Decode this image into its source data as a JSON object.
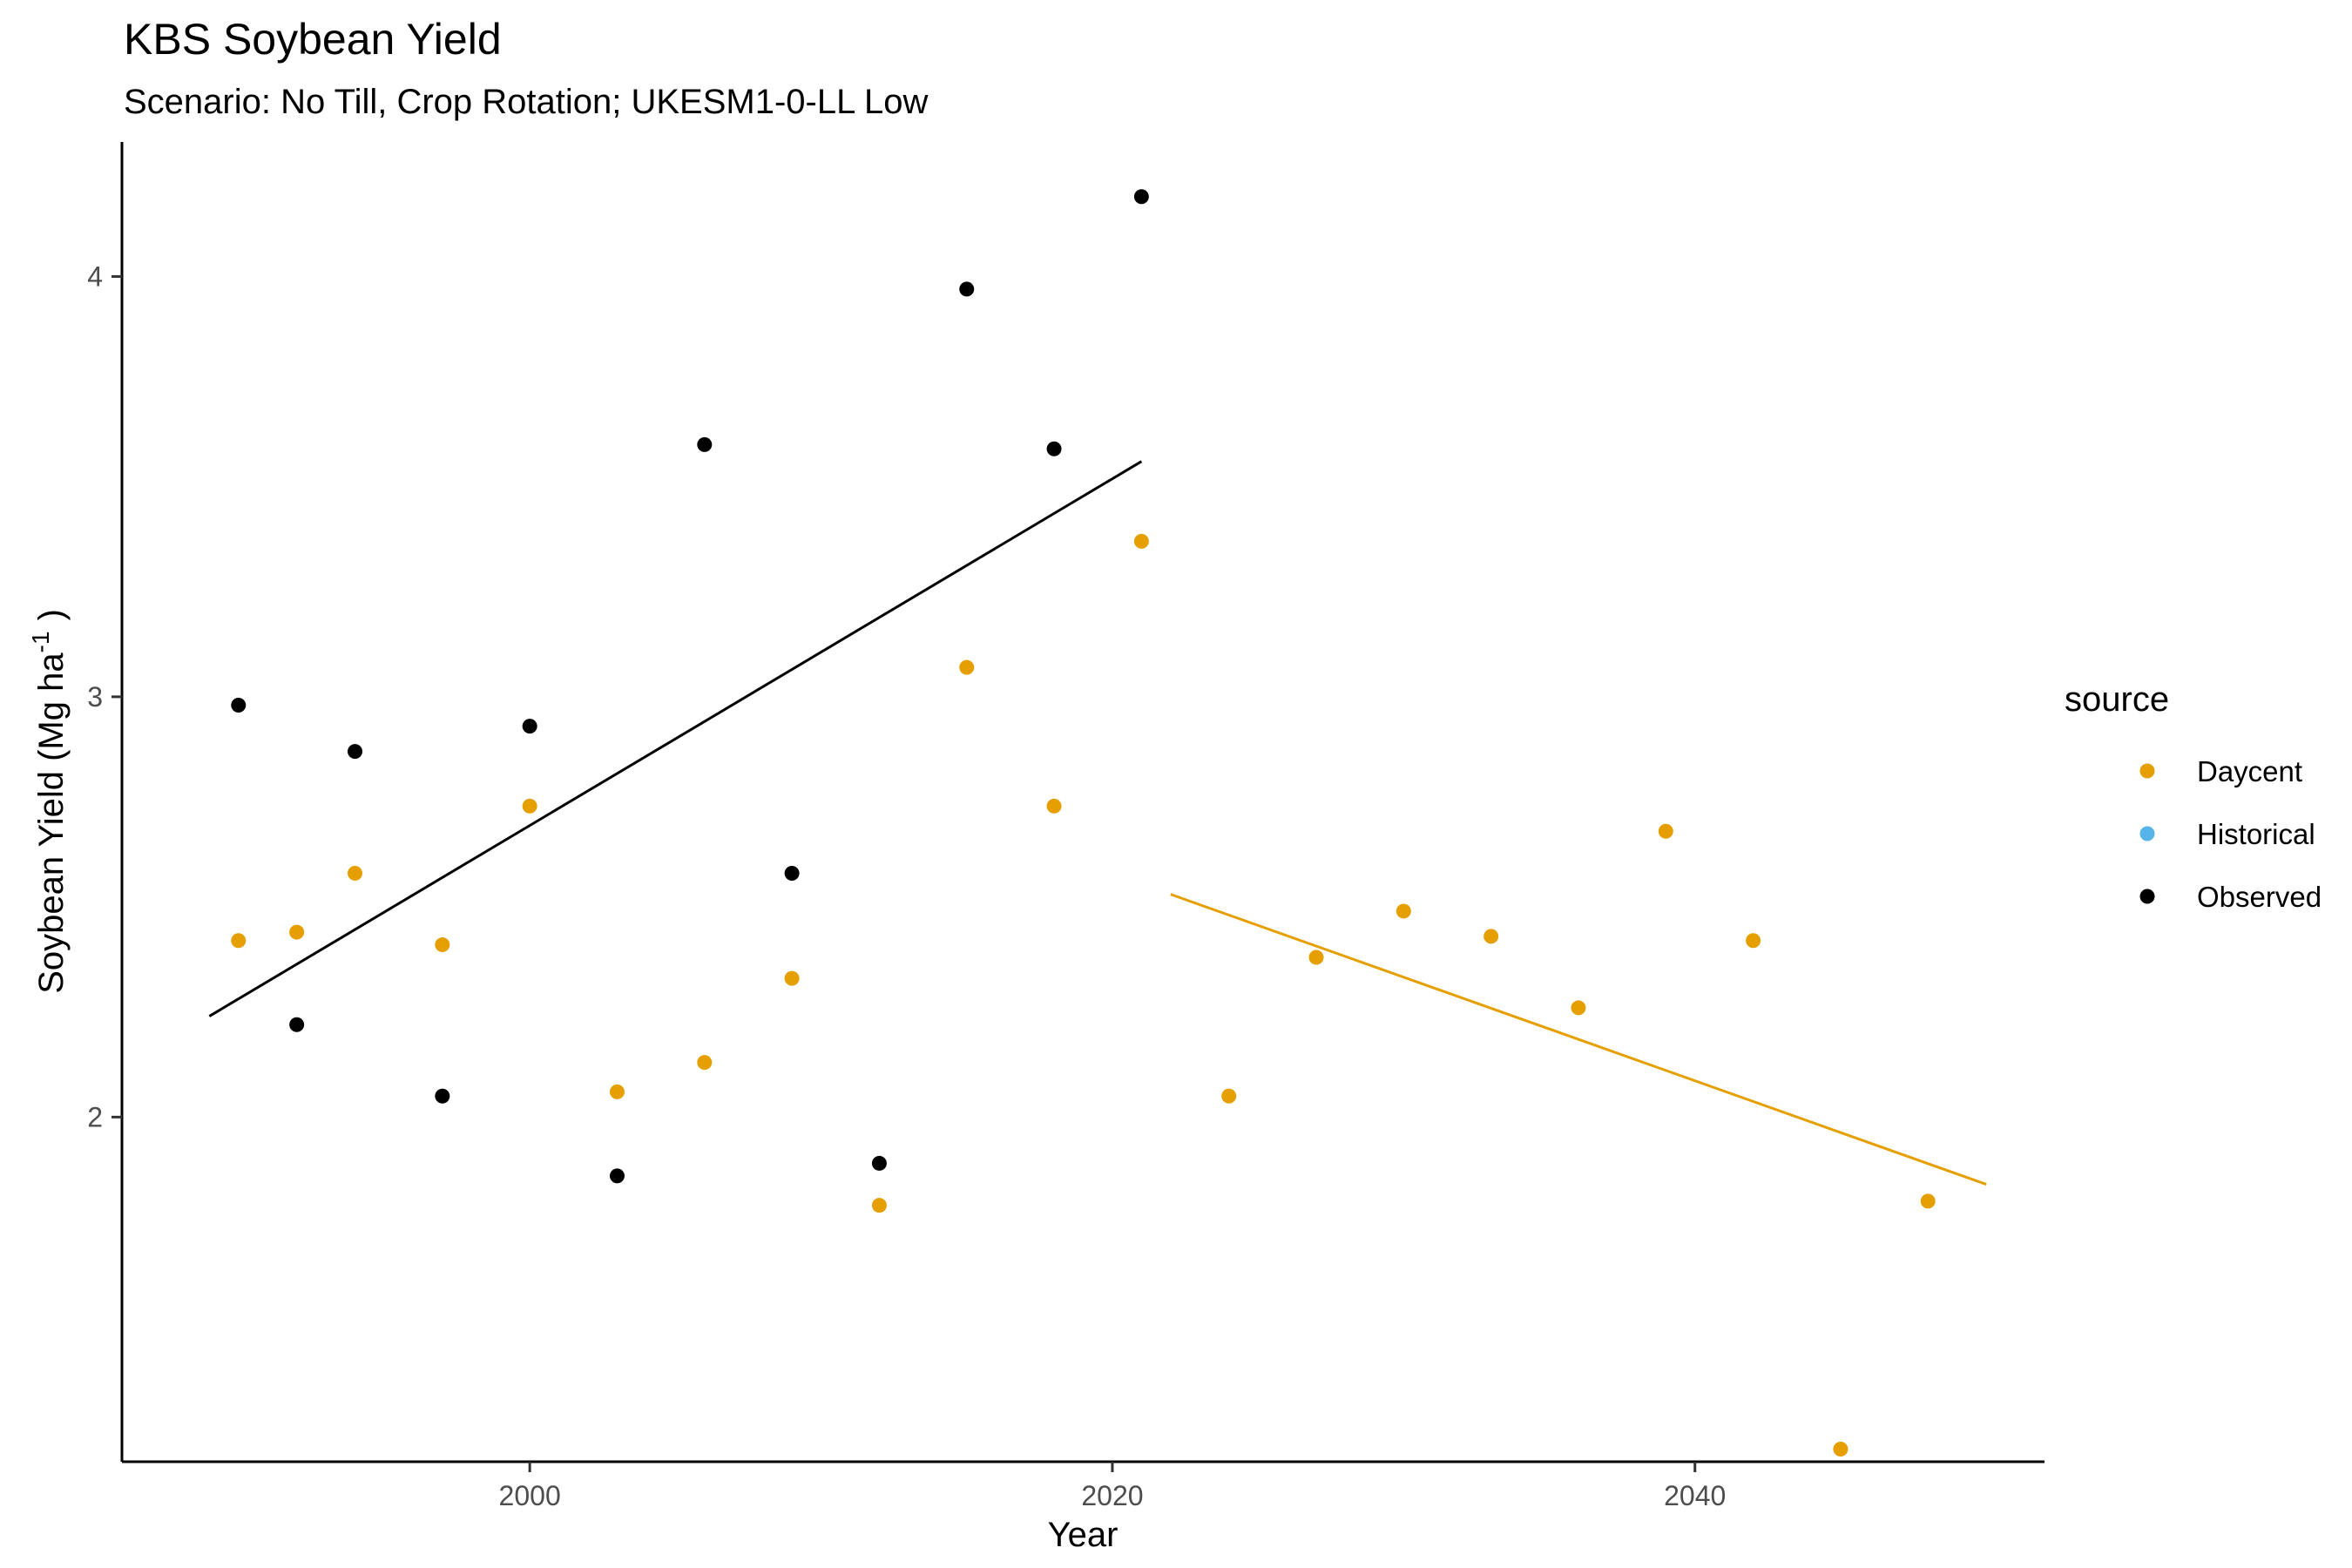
{
  "chart_data": {
    "type": "scatter",
    "title": "KBS Soybean Yield",
    "subtitle": "Scenario: No Till, Crop Rotation; UKESM1-0-LL Low",
    "xlabel": "Year",
    "ylabel": "Soybean Yield (Mg ha",
    "ylabel_superscript": "-1",
    "ylabel_close": ")",
    "xlim": [
      1986,
      2052
    ],
    "ylim": [
      1.18,
      4.32
    ],
    "x_ticks": [
      2000,
      2020,
      2040
    ],
    "y_ticks": [
      2,
      3,
      4
    ],
    "grid": false,
    "legend": {
      "title": "source",
      "position": "right",
      "entries": [
        {
          "label": "Daycent",
          "color": "#E69F00"
        },
        {
          "label": "Historical",
          "color": "#56B4E9"
        },
        {
          "label": "Observed",
          "color": "#000000"
        }
      ]
    },
    "series": [
      {
        "name": "Daycent",
        "color": "#E69F00",
        "points": [
          [
            1990,
            2.42
          ],
          [
            1992,
            2.44
          ],
          [
            1994,
            2.58
          ],
          [
            1997,
            2.41
          ],
          [
            2000,
            2.74
          ],
          [
            2003,
            2.06
          ],
          [
            2006,
            2.13
          ],
          [
            2009,
            2.33
          ],
          [
            2012,
            1.79
          ],
          [
            2015,
            3.07
          ],
          [
            2018,
            2.74
          ],
          [
            2021,
            3.37
          ],
          [
            2024,
            2.05
          ],
          [
            2027,
            2.38
          ],
          [
            2030,
            2.49
          ],
          [
            2033,
            2.43
          ],
          [
            2036,
            2.26
          ],
          [
            2039,
            2.68
          ],
          [
            2042,
            2.42
          ],
          [
            2045,
            1.21
          ],
          [
            2048,
            1.8
          ]
        ],
        "trendline": [
          [
            2022,
            2.53
          ],
          [
            2050,
            1.84
          ]
        ]
      },
      {
        "name": "Historical",
        "color": "#56B4E9",
        "points": []
      },
      {
        "name": "Observed",
        "color": "#000000",
        "points": [
          [
            1990,
            2.98
          ],
          [
            1992,
            2.22
          ],
          [
            1994,
            2.87
          ],
          [
            1997,
            2.05
          ],
          [
            2000,
            2.93
          ],
          [
            2003,
            1.86
          ],
          [
            2006,
            3.6
          ],
          [
            2009,
            2.58
          ],
          [
            2012,
            1.89
          ],
          [
            2015,
            3.97
          ],
          [
            2018,
            3.59
          ],
          [
            2021,
            4.19
          ]
        ],
        "trendline": [
          [
            1989,
            2.24
          ],
          [
            2021,
            3.56
          ]
        ]
      }
    ]
  }
}
